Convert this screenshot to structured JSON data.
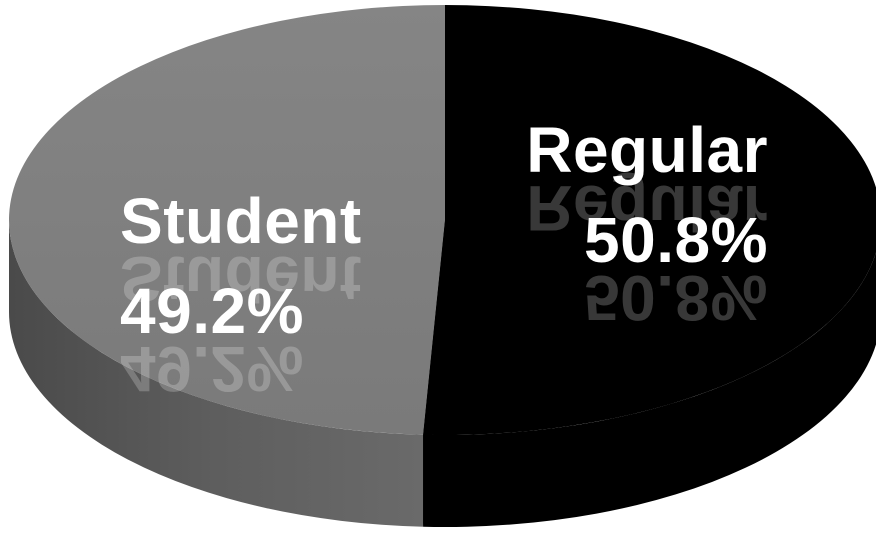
{
  "chart_data": {
    "type": "pie",
    "style": "3d",
    "title": "",
    "series": [
      {
        "label": "Student",
        "value": 49.2,
        "display": "49.2%",
        "color": "#808080"
      },
      {
        "label": "Regular",
        "value": 50.8,
        "display": "50.8%",
        "color": "#000000"
      }
    ],
    "legend": "none",
    "label_color": "#ffffff"
  }
}
